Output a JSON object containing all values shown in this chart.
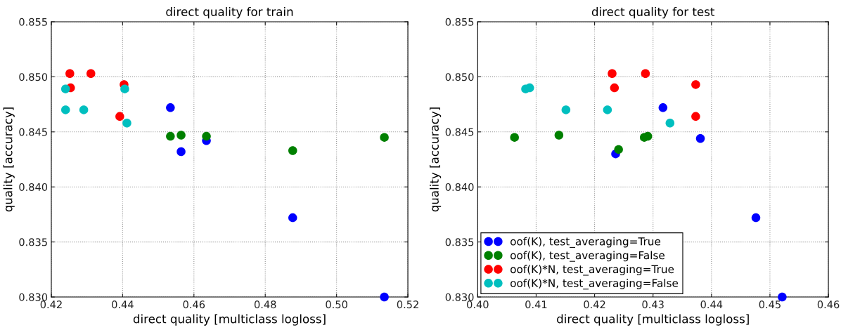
{
  "chart_data": [
    {
      "type": "scatter",
      "title": "direct quality for train",
      "xlabel": "direct quality [multiclass logloss]",
      "ylabel": "quality [accuracy]",
      "xlim": [
        0.42,
        0.52
      ],
      "ylim": [
        0.83,
        0.855
      ],
      "xticks": [
        {
          "value": 0.42,
          "label": "0.42"
        },
        {
          "value": 0.44,
          "label": "0.44"
        },
        {
          "value": 0.46,
          "label": "0.46"
        },
        {
          "value": 0.48,
          "label": "0.48"
        },
        {
          "value": 0.5,
          "label": "0.50"
        },
        {
          "value": 0.52,
          "label": "0.52"
        }
      ],
      "yticks": [
        {
          "value": 0.83,
          "label": "0.830"
        },
        {
          "value": 0.835,
          "label": "0.835"
        },
        {
          "value": 0.84,
          "label": "0.840"
        },
        {
          "value": 0.845,
          "label": "0.845"
        },
        {
          "value": 0.85,
          "label": "0.850"
        },
        {
          "value": 0.855,
          "label": "0.855"
        }
      ],
      "grid": true,
      "marker": "circle",
      "legend": false,
      "series": [
        {
          "color": "#0000ff",
          "x": [
            0.4534,
            0.4564,
            0.4635,
            0.4877,
            0.5134
          ],
          "values": [
            0.8472,
            0.8432,
            0.8442,
            0.8372,
            0.83
          ]
        },
        {
          "color": "#008000",
          "x": [
            0.4534,
            0.4564,
            0.4635,
            0.4877,
            0.5134
          ],
          "values": [
            0.8446,
            0.8447,
            0.8446,
            0.8433,
            0.8445
          ]
        },
        {
          "color": "#ff0000",
          "x": [
            0.4252,
            0.4311,
            0.4254,
            0.4404,
            0.4392
          ],
          "values": [
            0.8503,
            0.8503,
            0.849,
            0.8493,
            0.8464
          ]
        },
        {
          "color": "#00bfbf",
          "x": [
            0.424,
            0.4406,
            0.424,
            0.4291,
            0.4412
          ],
          "values": [
            0.8489,
            0.8489,
            0.847,
            0.847,
            0.8458
          ]
        }
      ]
    },
    {
      "type": "scatter",
      "title": "direct quality for test",
      "xlabel": "direct quality [multiclass logloss]",
      "ylabel": "quality [accuracy]",
      "xlim": [
        0.4,
        0.46
      ],
      "ylim": [
        0.83,
        0.855
      ],
      "xticks": [
        {
          "value": 0.4,
          "label": "0.40"
        },
        {
          "value": 0.41,
          "label": "0.41"
        },
        {
          "value": 0.42,
          "label": "0.42"
        },
        {
          "value": 0.43,
          "label": "0.43"
        },
        {
          "value": 0.44,
          "label": "0.44"
        },
        {
          "value": 0.45,
          "label": "0.45"
        },
        {
          "value": 0.46,
          "label": "0.46"
        }
      ],
      "yticks": [
        {
          "value": 0.83,
          "label": "0.830"
        },
        {
          "value": 0.835,
          "label": "0.835"
        },
        {
          "value": 0.84,
          "label": "0.840"
        },
        {
          "value": 0.845,
          "label": "0.845"
        },
        {
          "value": 0.85,
          "label": "0.850"
        },
        {
          "value": 0.855,
          "label": "0.855"
        }
      ],
      "grid": true,
      "marker": "circle",
      "legend": "bottom left",
      "series": [
        {
          "name": "oof(K), test_averaging=True",
          "color": "#0000ff",
          "x": [
            0.4317,
            0.4381,
            0.4236,
            0.4476,
            0.4521
          ],
          "values": [
            0.8472,
            0.8444,
            0.843,
            0.8372,
            0.83
          ]
        },
        {
          "name": "oof(K), test_averaging=False",
          "color": "#008000",
          "x": [
            0.4063,
            0.4139,
            0.4285,
            0.4291,
            0.4241
          ],
          "values": [
            0.8445,
            0.8447,
            0.8445,
            0.8446,
            0.8434
          ]
        },
        {
          "name": "oof(K)*N, test_averaging=True",
          "color": "#ff0000",
          "x": [
            0.423,
            0.4287,
            0.4234,
            0.4373,
            0.4373
          ],
          "values": [
            0.8503,
            0.8503,
            0.849,
            0.8493,
            0.8464
          ]
        },
        {
          "name": "oof(K)*N, test_averaging=False",
          "color": "#00bfbf",
          "x": [
            0.4082,
            0.4089,
            0.4151,
            0.4222,
            0.4329
          ],
          "values": [
            0.8489,
            0.849,
            0.847,
            0.847,
            0.8458
          ]
        }
      ]
    }
  ]
}
